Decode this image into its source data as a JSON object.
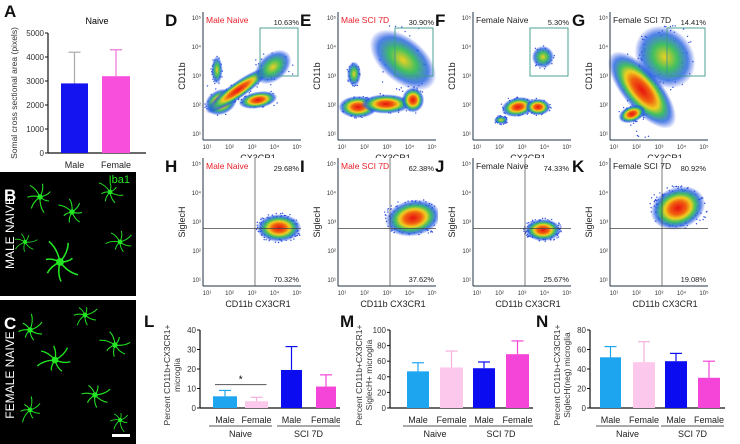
{
  "panel_letters": [
    "A",
    "B",
    "C",
    "D",
    "E",
    "F",
    "G",
    "H",
    "I",
    "J",
    "K",
    "L",
    "M",
    "N"
  ],
  "micrographs": {
    "B": {
      "stain": "Iba1",
      "side_label": "MALE NAIVE",
      "stain_color": "#22e622"
    },
    "C": {
      "side_label": "FEMALE NAIVE"
    }
  },
  "colors": {
    "male_naive": "#1ea5f0",
    "female_naive": "#fcc8ec",
    "male_sci": "#0c0cf0",
    "female_sci": "#f545d8",
    "a_male": "#1414f0",
    "a_female": "#f850dc",
    "gate": "#3a9a8a",
    "sample_label": "#e8202a"
  },
  "chart_data": [
    {
      "id": "A",
      "type": "bar",
      "title": "Naive",
      "ylabel": "Somal cross sectional area (pixels)",
      "ylim": [
        0,
        5000
      ],
      "yticks": [
        "0",
        "1000",
        "2000",
        "3000",
        "4000",
        "5000"
      ],
      "categories": [
        "Male",
        "Female"
      ],
      "values": [
        2900,
        3200
      ],
      "error_upper": [
        4200,
        4300
      ],
      "bar_colors": [
        "#1414f0",
        "#f850dc"
      ]
    },
    {
      "id": "L",
      "type": "bar",
      "ylabel": [
        "Percent CD11b+CX3CR1+",
        "microglia"
      ],
      "ylim": [
        0,
        40
      ],
      "yticks": [
        "0",
        "10",
        "20",
        "30",
        "40"
      ],
      "categories": [
        "Male",
        "Female",
        "Male",
        "Female"
      ],
      "groups": [
        "Naive",
        "SCI 7D"
      ],
      "values": [
        6,
        3.5,
        19.5,
        11
      ],
      "error_upper": [
        9,
        5.5,
        31.5,
        17
      ],
      "bar_colors": [
        "#1ea5f0",
        "#fcc8ec",
        "#0c0cf0",
        "#f545d8"
      ],
      "significance": {
        "between": [
          0,
          1
        ],
        "label": "*"
      }
    },
    {
      "id": "M",
      "type": "bar",
      "ylabel": [
        "Percent CD11b+CX3CR1+",
        "SiglecH+ microglia"
      ],
      "ylim": [
        0,
        100
      ],
      "yticks": [
        "0",
        "20",
        "40",
        "60",
        "80",
        "100"
      ],
      "categories": [
        "Male",
        "Female",
        "Male",
        "Female"
      ],
      "groups": [
        "Naive",
        "SCI 7D"
      ],
      "values": [
        47,
        52,
        51,
        69
      ],
      "error_upper": [
        58,
        73,
        59,
        86
      ],
      "bar_colors": [
        "#1ea5f0",
        "#fcc8ec",
        "#0c0cf0",
        "#f545d8"
      ]
    },
    {
      "id": "N",
      "type": "bar",
      "ylabel": [
        "Percent CD11b+CX3CR1+",
        "SiglecH(neg) microglia"
      ],
      "ylim": [
        0,
        80
      ],
      "yticks": [
        "0",
        "20",
        "40",
        "60",
        "80"
      ],
      "categories": [
        "Male",
        "Female",
        "Male",
        "Female"
      ],
      "groups": [
        "Naive",
        "SCI 7D"
      ],
      "values": [
        52,
        47,
        48,
        31
      ],
      "error_upper": [
        63,
        68,
        56,
        48
      ],
      "bar_colors": [
        "#1ea5f0",
        "#fcc8ec",
        "#0c0cf0",
        "#f545d8"
      ]
    }
  ],
  "flow_plots": {
    "ticks": [
      "10¹",
      "10²",
      "10³",
      "10⁴",
      "10⁵"
    ],
    "top_row": {
      "xlabel": "CX3CR1",
      "ylabel": "CD11b",
      "panels": [
        {
          "id": "D",
          "sample": "Male Naive",
          "sample_red": true,
          "gate_pct": "10.63%"
        },
        {
          "id": "E",
          "sample": "Male SCI 7D",
          "sample_red": true,
          "gate_pct": "30.90%"
        },
        {
          "id": "F",
          "sample": "Female Naive",
          "sample_red": false,
          "gate_pct": "5.30%"
        },
        {
          "id": "G",
          "sample": "Female SCI 7D",
          "sample_red": false,
          "gate_pct": "14.41%"
        }
      ]
    },
    "bottom_row": {
      "xlabel": "CD11b CX3CR1",
      "ylabel": "SiglecH",
      "panels": [
        {
          "id": "H",
          "sample": "Male Naive",
          "sample_red": true,
          "upper_pct": "29.68%",
          "lower_pct": "70.32%"
        },
        {
          "id": "I",
          "sample": "Male SCI 7D",
          "sample_red": true,
          "upper_pct": "62.38%",
          "lower_pct": "37.62%"
        },
        {
          "id": "J",
          "sample": "Female Naive",
          "sample_red": false,
          "upper_pct": "74.33%",
          "lower_pct": "25.67%"
        },
        {
          "id": "K",
          "sample": "Female SCI 7D",
          "sample_red": false,
          "upper_pct": "80.92%",
          "lower_pct": "19.08%"
        }
      ]
    }
  }
}
